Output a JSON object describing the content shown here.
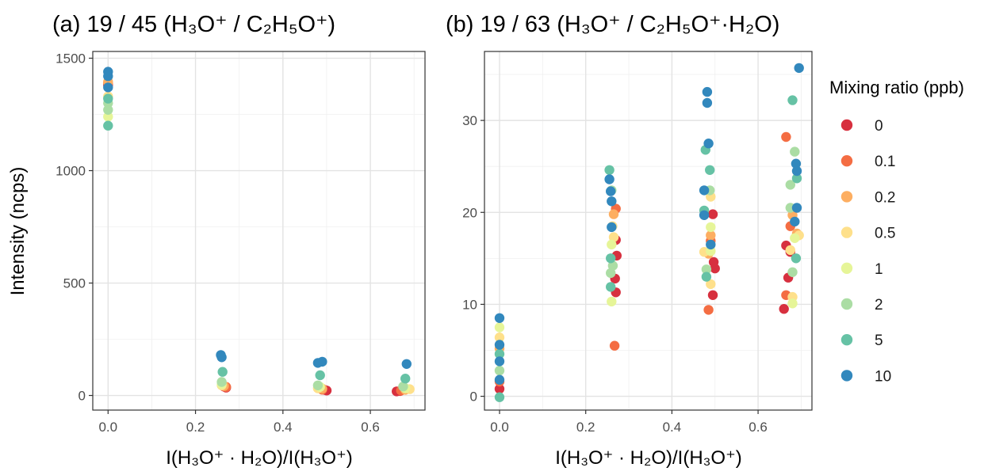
{
  "colors": {
    "0": "#D7303F",
    "0.1": "#F46D43",
    "0.2": "#FDAE61",
    "0.5": "#FEE08B",
    "1": "#E6F598",
    "2": "#ABDDA4",
    "5": "#66C2A5",
    "10": "#3288BD"
  },
  "ylabel": "Intensity (ncps)",
  "legend": {
    "title": "Mixing ratio (ppb)",
    "entries": [
      "0",
      "0.1",
      "0.2",
      "0.5",
      "1",
      "2",
      "5",
      "10"
    ]
  },
  "chart_data": [
    {
      "type": "scatter",
      "title": "(a) 19 / 45 (H₃O⁺ / C₂H₅O⁺)",
      "xlabel": "I(H₃O⁺ · H₂O)/I(H₃O⁺)",
      "ylabel": "Intensity (ncps)",
      "xlim": [
        -0.035,
        0.725
      ],
      "ylim": [
        -65,
        1530
      ],
      "x_ticks": [
        "0.0",
        "0.2",
        "0.4",
        "0.6"
      ],
      "y_ticks": [
        "0",
        "500",
        "1000",
        "1500"
      ],
      "grid": true,
      "series": [
        {
          "name": "0",
          "points": [
            [
              0.0,
              1380
            ],
            [
              0.27,
              35
            ],
            [
              0.265,
              40
            ],
            [
              0.5,
              22
            ],
            [
              0.495,
              25
            ],
            [
              0.66,
              18
            ],
            [
              0.668,
              20
            ]
          ]
        },
        {
          "name": "0.1",
          "points": [
            [
              0.0,
              1390
            ],
            [
              0.27,
              38
            ],
            [
              0.49,
              26
            ],
            [
              0.67,
              22
            ]
          ]
        },
        {
          "name": "0.2",
          "points": [
            [
              0.0,
              1395
            ],
            [
              0.265,
              42
            ],
            [
              0.49,
              30
            ],
            [
              0.68,
              25
            ]
          ]
        },
        {
          "name": "0.5",
          "points": [
            [
              0.0,
              1330
            ],
            [
              0.26,
              45
            ],
            [
              0.48,
              32
            ],
            [
              0.69,
              28
            ]
          ]
        },
        {
          "name": "1",
          "points": [
            [
              0.0,
              1240
            ],
            [
              0.26,
              50
            ],
            [
              0.485,
              38
            ],
            [
              0.68,
              32
            ]
          ]
        },
        {
          "name": "2",
          "points": [
            [
              0.0,
              1300
            ],
            [
              0.0,
              1270
            ],
            [
              0.26,
              60
            ],
            [
              0.48,
              45
            ],
            [
              0.675,
              40
            ]
          ]
        },
        {
          "name": "5",
          "points": [
            [
              0.0,
              1200
            ],
            [
              0.0,
              1320
            ],
            [
              0.262,
              105
            ],
            [
              0.485,
              90
            ],
            [
              0.68,
              75
            ]
          ]
        },
        {
          "name": "10",
          "points": [
            [
              0.0,
              1440
            ],
            [
              0.0,
              1420
            ],
            [
              0.0,
              1370
            ],
            [
              0.258,
              180
            ],
            [
              0.26,
              170
            ],
            [
              0.48,
              145
            ],
            [
              0.49,
              150
            ],
            [
              0.683,
              140
            ]
          ]
        }
      ]
    },
    {
      "type": "scatter",
      "title": "(b) 19 / 63 (H₃O⁺ / C₂H₅O⁺·H₂O)",
      "xlabel": "I(H₃O⁺ · H₂O)/I(H₃O⁺)",
      "xlim": [
        -0.035,
        0.725
      ],
      "ylim": [
        -1.5,
        37.5
      ],
      "x_ticks": [
        "0.0",
        "0.2",
        "0.4",
        "0.6"
      ],
      "y_ticks": [
        "0",
        "10",
        "20",
        "30"
      ],
      "grid": true,
      "series": [
        {
          "name": "0",
          "points": [
            [
              0.0,
              0.8
            ],
            [
              0.27,
              11.3
            ],
            [
              0.268,
              12.8
            ],
            [
              0.272,
              15.3
            ],
            [
              0.27,
              17.0
            ],
            [
              0.495,
              11.0
            ],
            [
              0.5,
              13.9
            ],
            [
              0.497,
              14.6
            ],
            [
              0.495,
              19.8
            ],
            [
              0.66,
              9.5
            ],
            [
              0.67,
              12.9
            ],
            [
              0.665,
              16.4
            ],
            [
              0.675,
              15.7
            ]
          ]
        },
        {
          "name": "0.1",
          "points": [
            [
              0.0,
              1.6
            ],
            [
              0.267,
              5.5
            ],
            [
              0.27,
              20.4
            ],
            [
              0.485,
              9.4
            ],
            [
              0.49,
              16.9
            ],
            [
              0.665,
              28.2
            ],
            [
              0.675,
              18.5
            ],
            [
              0.665,
              11.0
            ]
          ]
        },
        {
          "name": "0.2",
          "points": [
            [
              0.0,
              5.2
            ],
            [
              0.265,
              19.8
            ],
            [
              0.49,
              17.5
            ],
            [
              0.485,
              15.5
            ],
            [
              0.68,
              19.7
            ],
            [
              0.69,
              17.7
            ]
          ]
        },
        {
          "name": "0.5",
          "points": [
            [
              0.0,
              6.4
            ],
            [
              0.262,
              18.5
            ],
            [
              0.265,
              17.3
            ],
            [
              0.475,
              15.7
            ],
            [
              0.49,
              12.2
            ],
            [
              0.49,
              21.7
            ],
            [
              0.68,
              10.8
            ],
            [
              0.695,
              17.5
            ],
            [
              0.675,
              15.9
            ]
          ]
        },
        {
          "name": "1",
          "points": [
            [
              0.0,
              7.5
            ],
            [
              0.26,
              10.3
            ],
            [
              0.26,
              16.5
            ],
            [
              0.49,
              18.4
            ],
            [
              0.49,
              15.8
            ],
            [
              0.68,
              10.1
            ],
            [
              0.685,
              17.2
            ]
          ]
        },
        {
          "name": "2",
          "points": [
            [
              0.0,
              2.8
            ],
            [
              0.258,
              13.4
            ],
            [
              0.263,
              14.2
            ],
            [
              0.26,
              22.4
            ],
            [
              0.48,
              13.8
            ],
            [
              0.488,
              22.4
            ],
            [
              0.675,
              20.5
            ],
            [
              0.675,
              23.0
            ],
            [
              0.68,
              13.5
            ],
            [
              0.685,
              26.6
            ]
          ]
        },
        {
          "name": "5",
          "points": [
            [
              0.0,
              -0.1
            ],
            [
              0.0,
              4.6
            ],
            [
              0.255,
              24.6
            ],
            [
              0.258,
              11.9
            ],
            [
              0.258,
              15.0
            ],
            [
              0.475,
              20.2
            ],
            [
              0.488,
              24.6
            ],
            [
              0.478,
              26.8
            ],
            [
              0.48,
              13.0
            ],
            [
              0.68,
              32.2
            ],
            [
              0.69,
              23.7
            ],
            [
              0.688,
              15.0
            ]
          ]
        },
        {
          "name": "10",
          "points": [
            [
              0.0,
              1.8
            ],
            [
              0.0,
              3.8
            ],
            [
              0.0,
              5.6
            ],
            [
              0.0,
              8.5
            ],
            [
              0.255,
              23.6
            ],
            [
              0.258,
              22.3
            ],
            [
              0.26,
              21.2
            ],
            [
              0.26,
              18.4
            ],
            [
              0.475,
              22.4
            ],
            [
              0.475,
              19.7
            ],
            [
              0.482,
              33.1
            ],
            [
              0.482,
              31.9
            ],
            [
              0.485,
              27.5
            ],
            [
              0.49,
              16.5
            ],
            [
              0.695,
              35.7
            ],
            [
              0.688,
              25.3
            ],
            [
              0.69,
              24.5
            ],
            [
              0.69,
              20.5
            ],
            [
              0.685,
              19.0
            ]
          ]
        }
      ]
    }
  ]
}
